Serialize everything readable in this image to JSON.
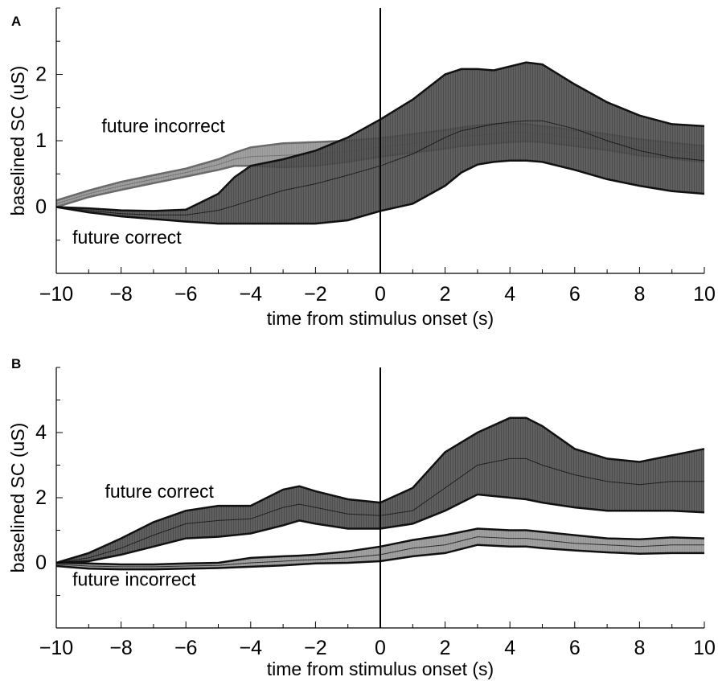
{
  "chart_data": [
    {
      "panel": "A",
      "type": "area",
      "xlabel": "time from stimulus onset (s)",
      "ylabel": "baselined SC (uS)",
      "xlim": [
        -10,
        10
      ],
      "ylim": [
        -1,
        3
      ],
      "xticks": [
        -10,
        -8,
        -6,
        -4,
        -2,
        0,
        2,
        4,
        6,
        8,
        10
      ],
      "xtick_labels": [
        "−10",
        "−8",
        "−6",
        "−4",
        "−2",
        "0",
        "2",
        "4",
        "6",
        "8",
        "10"
      ],
      "yticks": [
        0,
        1,
        2
      ],
      "ytick_labels": [
        "0",
        "1",
        "2"
      ],
      "vline_x": 0,
      "annotations": [
        {
          "text": "future incorrect",
          "x": -8.6,
          "y": 1.13
        },
        {
          "text": "future correct",
          "x": -9.5,
          "y": -0.55
        }
      ],
      "x": [
        -10,
        -9,
        -8,
        -7,
        -6,
        -5,
        -4.5,
        -4,
        -3,
        -2,
        -1,
        0,
        1,
        2,
        2.5,
        3,
        3.5,
        4,
        4.5,
        5,
        6,
        7,
        8,
        9,
        10
      ],
      "series": [
        {
          "color": "#888888",
          "mean": [
            0.05,
            0.2,
            0.32,
            0.42,
            0.52,
            0.64,
            0.72,
            0.76,
            0.78,
            0.8,
            0.84,
            0.9,
            0.96,
            1.02,
            1.06,
            1.08,
            1.1,
            1.12,
            1.12,
            1.1,
            1.04,
            0.98,
            0.9,
            0.85,
            0.8
          ],
          "upper": [
            0.1,
            0.25,
            0.38,
            0.48,
            0.58,
            0.72,
            0.82,
            0.9,
            0.96,
            0.98,
            1.0,
            1.04,
            1.1,
            1.16,
            1.2,
            1.23,
            1.25,
            1.26,
            1.25,
            1.22,
            1.16,
            1.1,
            1.02,
            0.97,
            0.92
          ],
          "lower": [
            0.0,
            0.15,
            0.26,
            0.36,
            0.46,
            0.56,
            0.62,
            0.62,
            0.6,
            0.62,
            0.68,
            0.76,
            0.82,
            0.88,
            0.92,
            0.94,
            0.96,
            0.98,
            0.99,
            0.98,
            0.92,
            0.86,
            0.78,
            0.73,
            0.68
          ]
        },
        {
          "color": "#3a3a3a",
          "mean": [
            0.0,
            -0.05,
            -0.1,
            -0.12,
            -0.12,
            -0.05,
            0.02,
            0.1,
            0.25,
            0.35,
            0.48,
            0.62,
            0.8,
            1.05,
            1.15,
            1.2,
            1.25,
            1.28,
            1.3,
            1.3,
            1.18,
            1.0,
            0.85,
            0.75,
            0.7
          ],
          "upper": [
            0.0,
            -0.02,
            -0.05,
            -0.06,
            -0.04,
            0.2,
            0.45,
            0.62,
            0.72,
            0.85,
            1.05,
            1.32,
            1.62,
            2.0,
            2.08,
            2.08,
            2.06,
            2.12,
            2.18,
            2.15,
            1.85,
            1.58,
            1.38,
            1.25,
            1.22
          ],
          "lower": [
            0.0,
            -0.08,
            -0.14,
            -0.18,
            -0.22,
            -0.25,
            -0.25,
            -0.25,
            -0.25,
            -0.25,
            -0.2,
            -0.06,
            0.05,
            0.32,
            0.52,
            0.64,
            0.68,
            0.7,
            0.7,
            0.68,
            0.56,
            0.42,
            0.32,
            0.24,
            0.2
          ]
        }
      ]
    },
    {
      "panel": "B",
      "type": "area",
      "xlabel": "time from stimulus onset (s)",
      "ylabel": "baselined SC (uS)",
      "xlim": [
        -10,
        10
      ],
      "ylim": [
        -2,
        6
      ],
      "xticks": [
        -10,
        -8,
        -6,
        -4,
        -2,
        0,
        2,
        4,
        6,
        8,
        10
      ],
      "xtick_labels": [
        "−10",
        "−8",
        "−6",
        "−4",
        "−2",
        "0",
        "2",
        "4",
        "6",
        "8",
        "10"
      ],
      "yticks": [
        0,
        2,
        4
      ],
      "ytick_labels": [
        "0",
        "2",
        "4"
      ],
      "vline_x": 0,
      "annotations": [
        {
          "text": "future correct",
          "x": -8.5,
          "y": 2.0
        },
        {
          "text": "future incorrect",
          "x": -9.5,
          "y": -0.7
        }
      ],
      "x": [
        -10,
        -9,
        -8,
        -7,
        -6,
        -5,
        -4,
        -3,
        -2.5,
        -2,
        -1,
        0,
        1,
        2,
        3,
        4,
        4.5,
        5,
        6,
        7,
        8,
        9,
        10
      ],
      "series": [
        {
          "color": "#3a3a3a",
          "mean": [
            0.0,
            0.15,
            0.45,
            0.85,
            1.2,
            1.3,
            1.35,
            1.7,
            1.8,
            1.7,
            1.5,
            1.45,
            1.6,
            2.3,
            3.0,
            3.2,
            3.2,
            3.0,
            2.7,
            2.5,
            2.4,
            2.5,
            2.5
          ],
          "upper": [
            0.0,
            0.3,
            0.75,
            1.25,
            1.6,
            1.75,
            1.75,
            2.25,
            2.35,
            2.2,
            1.95,
            1.85,
            2.3,
            3.4,
            4.0,
            4.45,
            4.45,
            4.2,
            3.5,
            3.2,
            3.1,
            3.3,
            3.5
          ],
          "lower": [
            0.0,
            0.05,
            0.25,
            0.5,
            0.75,
            0.8,
            0.9,
            1.15,
            1.3,
            1.2,
            1.05,
            1.05,
            1.2,
            1.6,
            2.1,
            2.0,
            1.95,
            1.85,
            1.7,
            1.6,
            1.6,
            1.6,
            1.55
          ]
        },
        {
          "color": "#888888",
          "mean": [
            -0.05,
            -0.1,
            -0.12,
            -0.12,
            -0.1,
            -0.08,
            0.0,
            0.05,
            0.08,
            0.1,
            0.15,
            0.25,
            0.45,
            0.55,
            0.8,
            0.75,
            0.75,
            0.7,
            0.6,
            0.55,
            0.5,
            0.55,
            0.55
          ],
          "upper": [
            0.0,
            -0.02,
            -0.05,
            -0.05,
            -0.02,
            0.0,
            0.15,
            0.2,
            0.22,
            0.25,
            0.35,
            0.5,
            0.7,
            0.85,
            1.05,
            1.0,
            1.0,
            0.95,
            0.85,
            0.75,
            0.72,
            0.78,
            0.75
          ],
          "lower": [
            -0.1,
            -0.18,
            -0.2,
            -0.2,
            -0.18,
            -0.16,
            -0.12,
            -0.08,
            -0.05,
            -0.02,
            0.0,
            0.05,
            0.2,
            0.3,
            0.55,
            0.5,
            0.5,
            0.45,
            0.38,
            0.32,
            0.28,
            0.3,
            0.3
          ]
        }
      ]
    }
  ]
}
